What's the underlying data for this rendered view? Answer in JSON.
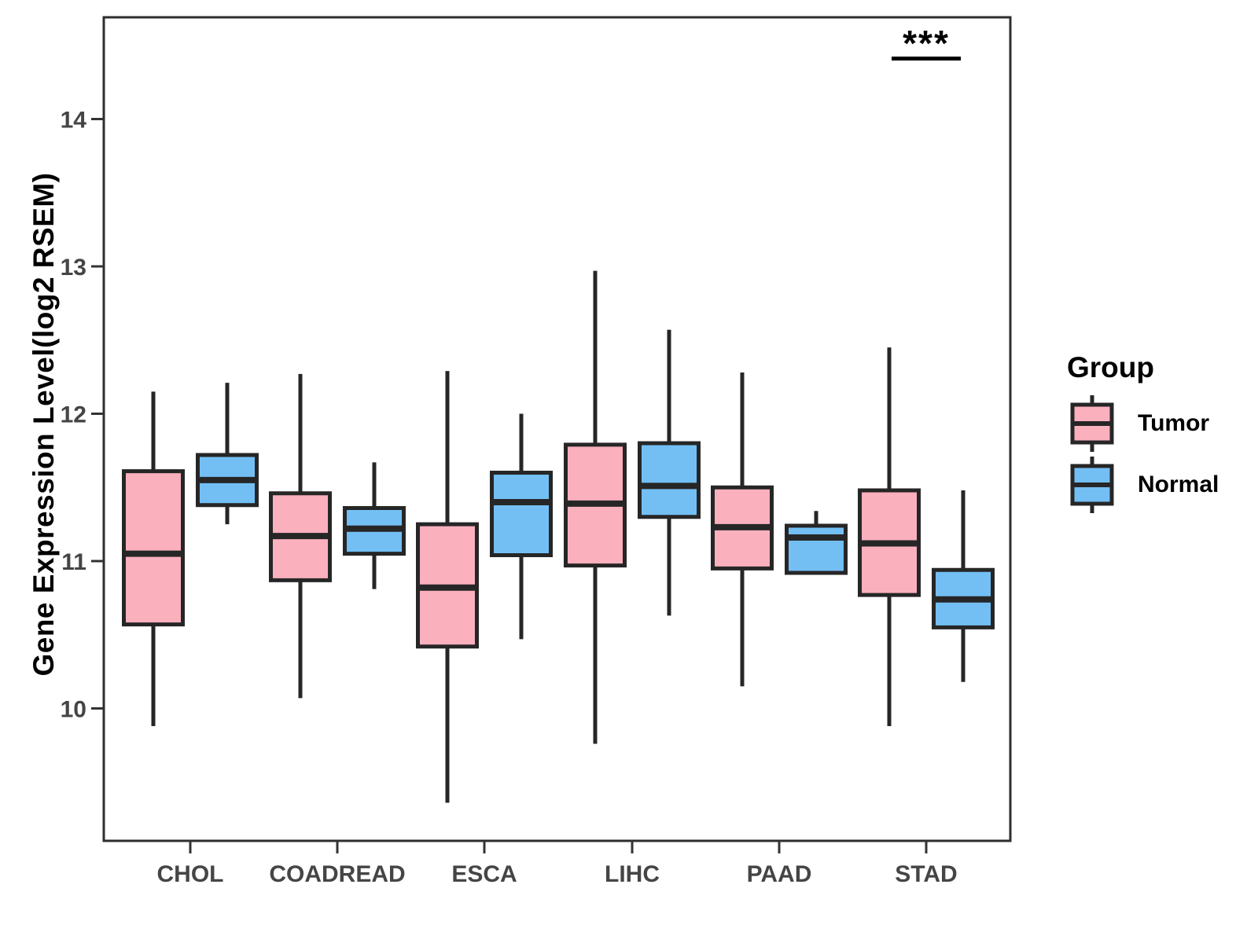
{
  "figure": {
    "background": "#FFFFFF"
  },
  "y_axis": {
    "title": "Gene Expression Level(log2 RSEM)",
    "tick_labels": [
      "10",
      "11",
      "12",
      "13",
      "14"
    ]
  },
  "x_axis": {
    "tick_labels": [
      "CHOL",
      "COADREAD",
      "ESCA",
      "LIHC",
      "PAAD",
      "STAD"
    ]
  },
  "legend": {
    "title": "Group",
    "items": [
      {
        "label": "Tumor",
        "color": "#FBB0BE"
      },
      {
        "label": "Normal",
        "color": "#73BFF4"
      }
    ]
  },
  "annotation": {
    "text": "***",
    "over_category": "STAD"
  },
  "chart_data": {
    "type": "boxplot",
    "title": "",
    "ylabel": "Gene Expression Level(log2 RSEM)",
    "xlabel": "",
    "categories": [
      "CHOL",
      "COADREAD",
      "ESCA",
      "LIHC",
      "PAAD",
      "STAD"
    ],
    "y_ticks": [
      10,
      11,
      12,
      13,
      14
    ],
    "ylim": [
      9.1,
      14.7
    ],
    "grid": false,
    "legend_position": "right",
    "series": [
      {
        "name": "Tumor",
        "fill": "#FBB0BE",
        "boxes": [
          {
            "category": "CHOL",
            "min": 9.88,
            "q1": 10.57,
            "median": 11.05,
            "q3": 11.61,
            "max": 12.15
          },
          {
            "category": "COADREAD",
            "min": 10.07,
            "q1": 10.87,
            "median": 11.17,
            "q3": 11.46,
            "max": 12.27
          },
          {
            "category": "ESCA",
            "min": 9.36,
            "q1": 10.42,
            "median": 10.82,
            "q3": 11.25,
            "max": 12.29
          },
          {
            "category": "LIHC",
            "min": 9.76,
            "q1": 10.97,
            "median": 11.39,
            "q3": 11.79,
            "max": 12.97
          },
          {
            "category": "PAAD",
            "min": 10.15,
            "q1": 10.95,
            "median": 11.23,
            "q3": 11.5,
            "max": 12.28
          },
          {
            "category": "STAD",
            "min": 9.88,
            "q1": 10.77,
            "median": 11.12,
            "q3": 11.48,
            "max": 12.45
          }
        ]
      },
      {
        "name": "Normal",
        "fill": "#73BFF4",
        "boxes": [
          {
            "category": "CHOL",
            "min": 11.25,
            "q1": 11.38,
            "median": 11.55,
            "q3": 11.72,
            "max": 12.21
          },
          {
            "category": "COADREAD",
            "min": 10.81,
            "q1": 11.05,
            "median": 11.22,
            "q3": 11.36,
            "max": 11.67
          },
          {
            "category": "ESCA",
            "min": 10.47,
            "q1": 11.04,
            "median": 11.4,
            "q3": 11.6,
            "max": 12.0
          },
          {
            "category": "LIHC",
            "min": 10.63,
            "q1": 11.3,
            "median": 11.51,
            "q3": 11.8,
            "max": 12.57
          },
          {
            "category": "PAAD",
            "min": 10.92,
            "q1": 10.92,
            "median": 11.16,
            "q3": 11.24,
            "max": 11.34
          },
          {
            "category": "STAD",
            "min": 10.18,
            "q1": 10.55,
            "median": 10.74,
            "q3": 10.94,
            "max": 11.48
          }
        ]
      }
    ],
    "significance": {
      "category": "STAD",
      "label": "***"
    },
    "colors": {
      "box_border": "#262626",
      "panel_border": "#2E2E2E",
      "tick_text": "#454545",
      "axis_text": "#000000"
    }
  }
}
